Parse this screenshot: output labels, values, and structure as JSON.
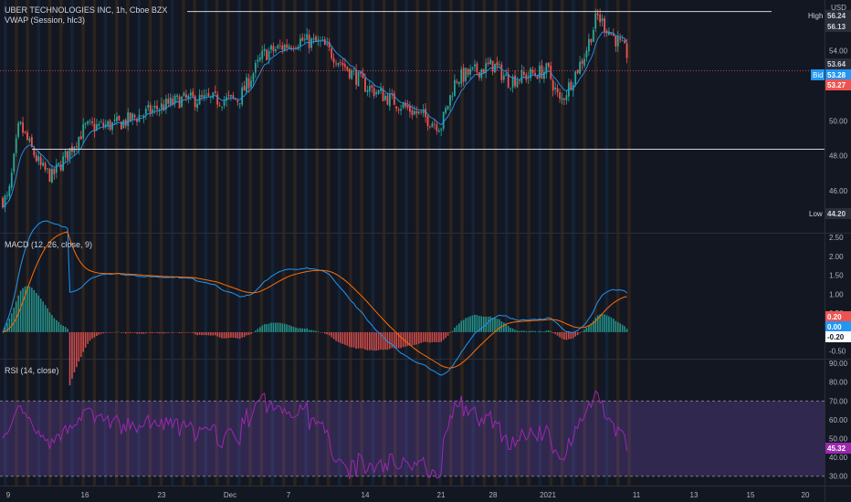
{
  "header": {
    "title": "UBER TECHNOLOGIES INC, 1h, Cboe BZX",
    "indicator": "VWAP (Session, hlc3)",
    "currency": "USD"
  },
  "chart_data": [
    {
      "type": "candlestick",
      "pane": "price",
      "x_ticks": [
        "9",
        "16",
        "23",
        "Dec",
        "7",
        "14",
        "21",
        "28",
        "2021",
        "11",
        "13",
        "15",
        "20"
      ],
      "y_ticks": [
        "56.00",
        "54.00",
        "52.00",
        "50.00",
        "48.00",
        "46.00"
      ],
      "ylim": [
        43.6,
        56.9
      ],
      "high_label": "High",
      "high_value": "56.24",
      "low_label": "Low",
      "low_value": "44.20",
      "axis_labels": [
        "56.13",
        "53.64",
        "53.28",
        "53.27"
      ],
      "bid_label": "Bid",
      "series_close_approx": [
        {
          "x": "Nov 9",
          "y": 45.5
        },
        {
          "x": "Nov 10",
          "y": 49.8
        },
        {
          "x": "Nov 12",
          "y": 47.3
        },
        {
          "x": "Nov 13",
          "y": 46.8
        },
        {
          "x": "Nov 16",
          "y": 49.6
        },
        {
          "x": "Nov 19",
          "y": 49.8
        },
        {
          "x": "Nov 23",
          "y": 50.8
        },
        {
          "x": "Nov 25",
          "y": 51.2
        },
        {
          "x": "Dec 1",
          "y": 51.2
        },
        {
          "x": "Dec 4",
          "y": 53.8
        },
        {
          "x": "Dec 8",
          "y": 54.6
        },
        {
          "x": "Dec 10",
          "y": 54.4
        },
        {
          "x": "Dec 14",
          "y": 52.0
        },
        {
          "x": "Dec 17",
          "y": 51.0
        },
        {
          "x": "Dec 21",
          "y": 49.7
        },
        {
          "x": "Dec 23",
          "y": 52.4
        },
        {
          "x": "Dec 28",
          "y": 53.2
        },
        {
          "x": "Dec 30",
          "y": 52.3
        },
        {
          "x": "Jan 4",
          "y": 52.9
        },
        {
          "x": "Jan 5",
          "y": 51.0
        },
        {
          "x": "Jan 7",
          "y": 53.8
        },
        {
          "x": "Jan 8",
          "y": 56.0
        },
        {
          "x": "Jan 11",
          "y": 53.3
        }
      ]
    },
    {
      "type": "line",
      "pane": "macd",
      "title": "MACD (12, 26, close, 9)",
      "y_ticks": [
        "2.50",
        "2.00",
        "1.50",
        "1.00",
        "0.50",
        "-0.50"
      ],
      "ylim": [
        -0.7,
        2.6
      ],
      "axis_labels": [
        "0.20",
        "0.00",
        "-0.20"
      ]
    },
    {
      "type": "line",
      "pane": "rsi",
      "title": "RSI (14, close)",
      "y_ticks": [
        "90.00",
        "80.00",
        "70.00",
        "60.00",
        "50.00",
        "40.00",
        "30.00"
      ],
      "ylim": [
        25,
        92
      ],
      "bands": [
        30,
        70
      ],
      "axis_labels": [
        "45.32"
      ]
    }
  ],
  "colors": {
    "background": "#131722",
    "up": "#26a69a",
    "down": "#ef5350",
    "vwap": "#2196f3",
    "macd": "#2196f3",
    "signal": "#ff6d00",
    "rsi": "#9c27b0",
    "grid": "#2a2e39",
    "text": "#b2b5be"
  }
}
